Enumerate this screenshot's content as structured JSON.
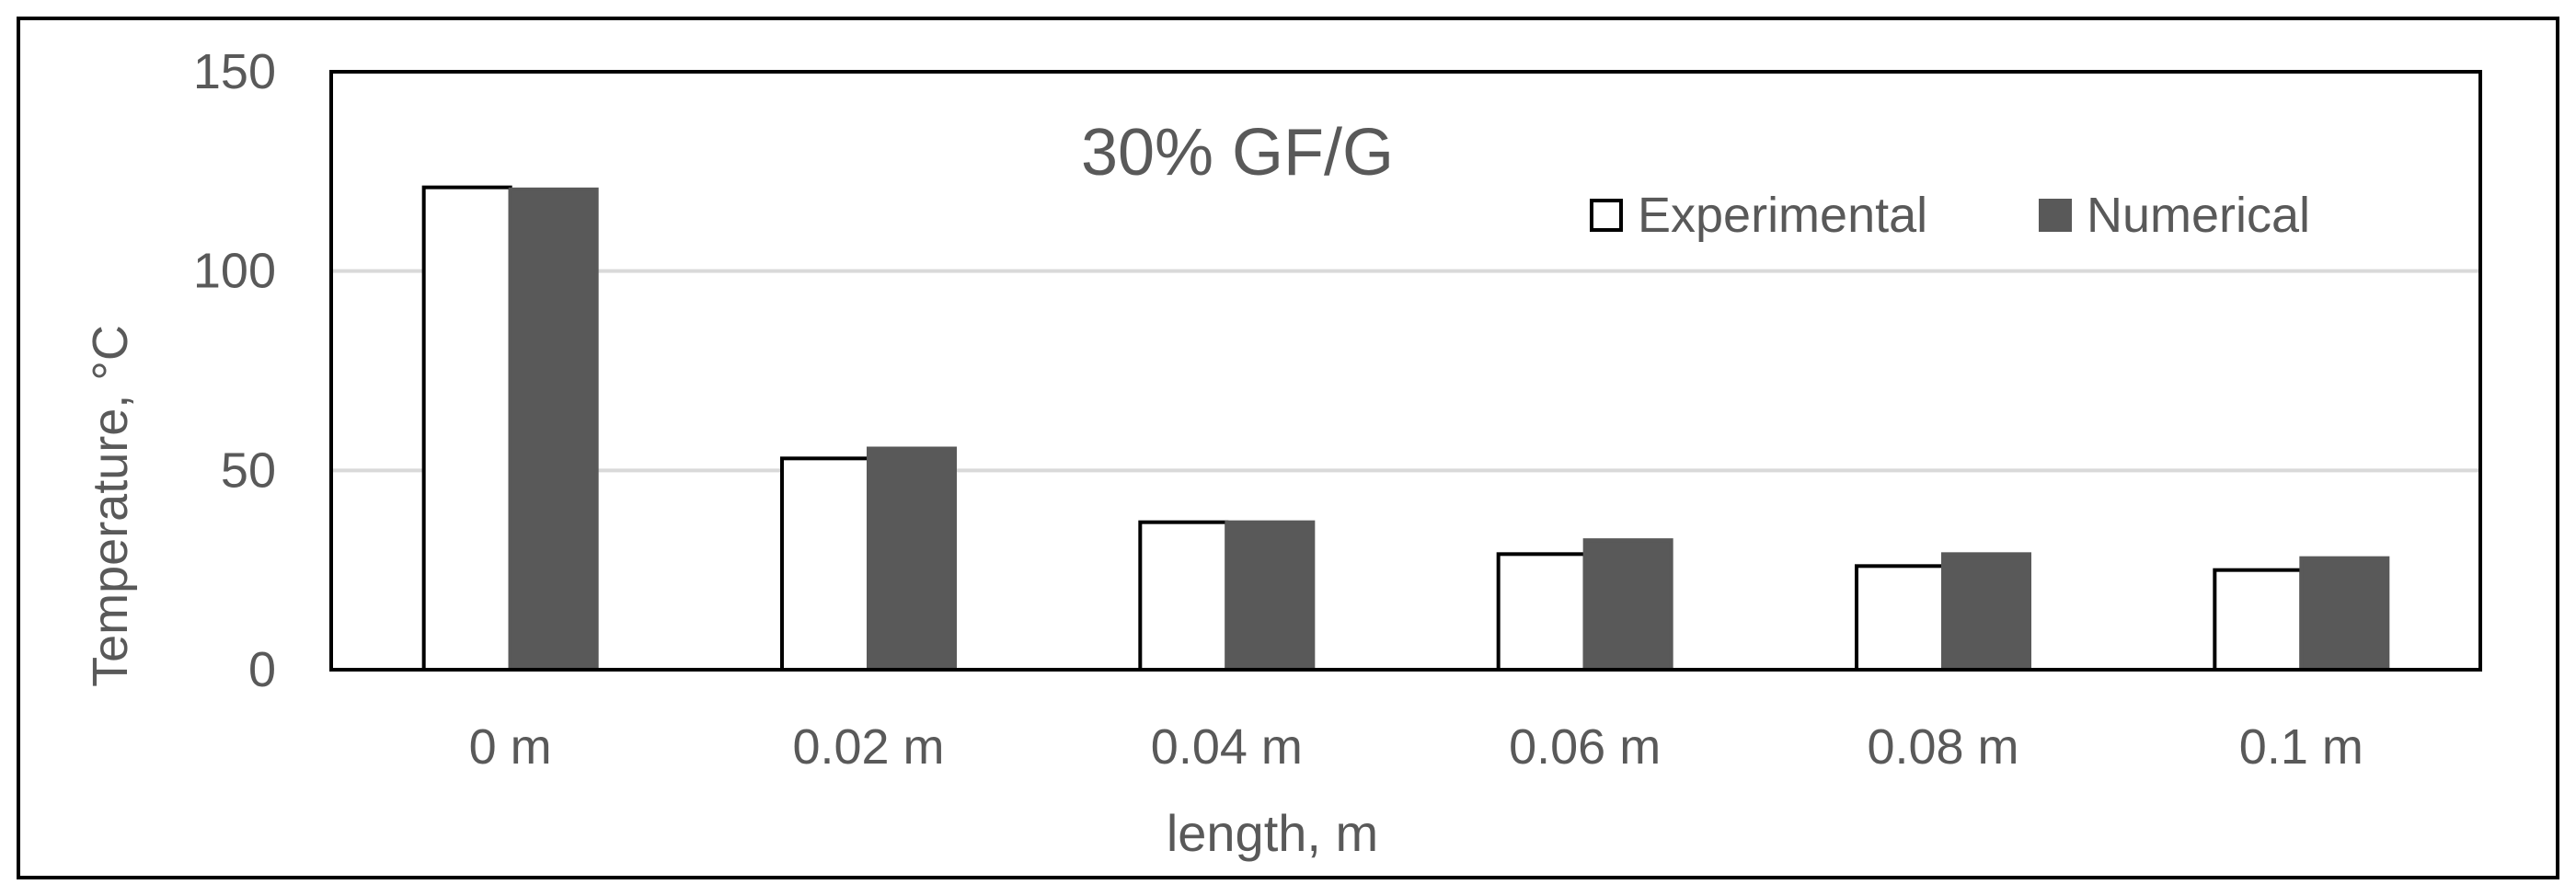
{
  "chart_data": {
    "type": "bar",
    "title": "30% GF/G",
    "xlabel": "length, m",
    "ylabel": "Temperature, °C",
    "categories": [
      "0 m",
      "0.02 m",
      "0.04 m",
      "0.06 m",
      "0.08 m",
      "0.1 m"
    ],
    "series": [
      {
        "name": "Experimental",
        "values": [
          121,
          53,
          37,
          29,
          26,
          25
        ],
        "fill": "#ffffff",
        "stroke": "#000000"
      },
      {
        "name": "Numerical",
        "values": [
          120.5,
          55.5,
          37,
          32.5,
          29,
          28
        ],
        "fill": "#595959",
        "stroke": "#595959"
      }
    ],
    "ylim": [
      0,
      150
    ],
    "yticks": [
      "0",
      "50",
      "100",
      "150"
    ],
    "grid": true,
    "legend_position": "top-right"
  }
}
